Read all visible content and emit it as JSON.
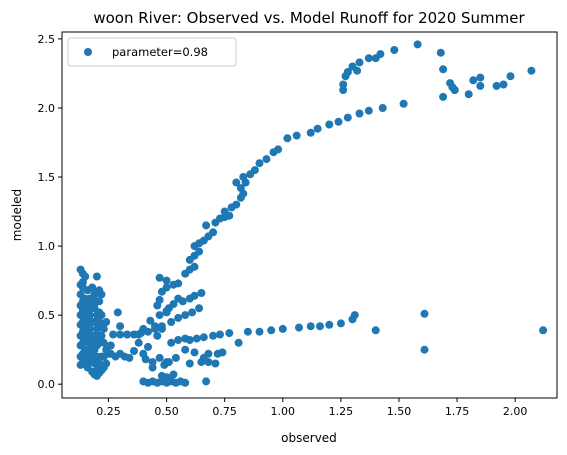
{
  "chart_data": {
    "type": "scatter",
    "title": "woon River: Observed vs. Model Runoff for 2020 Summer",
    "xlabel": "observed",
    "ylabel": "modeled",
    "xlim": [
      0.05,
      2.18
    ],
    "ylim": [
      -0.1,
      2.55
    ],
    "x_ticks": [
      0.25,
      0.5,
      0.75,
      1.0,
      1.25,
      1.5,
      1.75,
      2.0
    ],
    "x_tick_labels": [
      "0.25",
      "0.50",
      "0.75",
      "1.00",
      "1.25",
      "1.50",
      "1.75",
      "2.00"
    ],
    "y_ticks": [
      0.0,
      0.5,
      1.0,
      1.5,
      2.0,
      2.5
    ],
    "y_tick_labels": [
      "0.0",
      "0.5",
      "1.0",
      "1.5",
      "2.0",
      "2.5"
    ],
    "grid": false,
    "legend_position": "top-left",
    "series": [
      {
        "name": "parameter=0.98",
        "color": "#1f77b4",
        "points": [
          [
            0.13,
            0.83
          ],
          [
            0.14,
            0.8
          ],
          [
            0.15,
            0.78
          ],
          [
            0.13,
            0.72
          ],
          [
            0.14,
            0.7
          ],
          [
            0.16,
            0.68
          ],
          [
            0.13,
            0.65
          ],
          [
            0.15,
            0.62
          ],
          [
            0.14,
            0.6
          ],
          [
            0.13,
            0.57
          ],
          [
            0.16,
            0.55
          ],
          [
            0.14,
            0.53
          ],
          [
            0.13,
            0.5
          ],
          [
            0.15,
            0.48
          ],
          [
            0.14,
            0.45
          ],
          [
            0.13,
            0.43
          ],
          [
            0.15,
            0.4
          ],
          [
            0.14,
            0.38
          ],
          [
            0.13,
            0.35
          ],
          [
            0.15,
            0.33
          ],
          [
            0.14,
            0.3
          ],
          [
            0.13,
            0.28
          ],
          [
            0.15,
            0.25
          ],
          [
            0.14,
            0.22
          ],
          [
            0.13,
            0.2
          ],
          [
            0.15,
            0.18
          ],
          [
            0.14,
            0.16
          ],
          [
            0.13,
            0.14
          ],
          [
            0.16,
            0.15
          ],
          [
            0.17,
            0.2
          ],
          [
            0.18,
            0.25
          ],
          [
            0.17,
            0.3
          ],
          [
            0.18,
            0.35
          ],
          [
            0.17,
            0.4
          ],
          [
            0.18,
            0.45
          ],
          [
            0.17,
            0.5
          ],
          [
            0.18,
            0.55
          ],
          [
            0.17,
            0.6
          ],
          [
            0.19,
            0.65
          ],
          [
            0.18,
            0.7
          ],
          [
            0.17,
            0.62
          ],
          [
            0.19,
            0.55
          ],
          [
            0.2,
            0.5
          ],
          [
            0.19,
            0.45
          ],
          [
            0.2,
            0.4
          ],
          [
            0.19,
            0.35
          ],
          [
            0.2,
            0.3
          ],
          [
            0.19,
            0.25
          ],
          [
            0.2,
            0.2
          ],
          [
            0.19,
            0.15
          ],
          [
            0.2,
            0.1
          ],
          [
            0.19,
            0.07
          ],
          [
            0.21,
            0.08
          ],
          [
            0.22,
            0.1
          ],
          [
            0.21,
            0.15
          ],
          [
            0.22,
            0.2
          ],
          [
            0.21,
            0.3
          ],
          [
            0.22,
            0.35
          ],
          [
            0.21,
            0.45
          ],
          [
            0.22,
            0.5
          ],
          [
            0.21,
            0.6
          ],
          [
            0.22,
            0.65
          ],
          [
            0.23,
            0.12
          ],
          [
            0.24,
            0.15
          ],
          [
            0.23,
            0.2
          ],
          [
            0.24,
            0.25
          ],
          [
            0.23,
            0.3
          ],
          [
            0.25,
            0.22
          ],
          [
            0.24,
            0.45
          ],
          [
            0.26,
            0.28
          ],
          [
            0.16,
            0.58
          ],
          [
            0.15,
            0.52
          ],
          [
            0.17,
            0.45
          ],
          [
            0.16,
            0.42
          ],
          [
            0.15,
            0.37
          ],
          [
            0.16,
            0.32
          ],
          [
            0.17,
            0.27
          ],
          [
            0.16,
            0.23
          ],
          [
            0.18,
            0.18
          ],
          [
            0.16,
            0.12
          ],
          [
            0.18,
            0.09
          ],
          [
            0.2,
            0.06
          ],
          [
            0.14,
            0.74
          ],
          [
            0.2,
            0.66
          ],
          [
            0.21,
            0.52
          ],
          [
            0.22,
            0.42
          ],
          [
            0.2,
            0.36
          ],
          [
            0.23,
            0.4
          ],
          [
            0.18,
            0.62
          ],
          [
            0.19,
            0.58
          ],
          [
            0.2,
            0.6
          ],
          [
            0.21,
            0.68
          ],
          [
            0.2,
            0.78
          ],
          [
            0.15,
            0.32
          ],
          [
            0.14,
            0.36
          ],
          [
            0.17,
            0.34
          ],
          [
            0.18,
            0.28
          ],
          [
            0.17,
            0.22
          ],
          [
            0.19,
            0.32
          ],
          [
            0.2,
            0.28
          ],
          [
            0.27,
            0.36
          ],
          [
            0.3,
            0.36
          ],
          [
            0.33,
            0.36
          ],
          [
            0.36,
            0.36
          ],
          [
            0.39,
            0.37
          ],
          [
            0.42,
            0.38
          ],
          [
            0.4,
            0.4
          ],
          [
            0.38,
            0.36
          ],
          [
            0.45,
            0.4
          ],
          [
            0.48,
            0.42
          ],
          [
            0.52,
            0.45
          ],
          [
            0.55,
            0.48
          ],
          [
            0.58,
            0.5
          ],
          [
            0.61,
            0.52
          ],
          [
            0.64,
            0.55
          ],
          [
            0.5,
            0.52
          ],
          [
            0.47,
            0.5
          ],
          [
            0.43,
            0.46
          ],
          [
            0.45,
            0.42
          ],
          [
            0.51,
            0.55
          ],
          [
            0.53,
            0.58
          ],
          [
            0.57,
            0.6
          ],
          [
            0.6,
            0.62
          ],
          [
            0.62,
            0.64
          ],
          [
            0.65,
            0.66
          ],
          [
            0.55,
            0.62
          ],
          [
            0.46,
            0.57
          ],
          [
            0.5,
            0.53
          ],
          [
            0.29,
            0.52
          ],
          [
            0.3,
            0.42
          ],
          [
            0.26,
            0.22
          ],
          [
            0.28,
            0.2
          ],
          [
            0.3,
            0.22
          ],
          [
            0.32,
            0.2
          ],
          [
            0.34,
            0.19
          ],
          [
            0.36,
            0.24
          ],
          [
            0.4,
            0.22
          ],
          [
            0.38,
            0.3
          ],
          [
            0.42,
            0.27
          ],
          [
            0.41,
            0.18
          ],
          [
            0.44,
            0.16
          ],
          [
            0.5,
            0.16
          ],
          [
            0.47,
            0.19
          ],
          [
            0.52,
            0.3
          ],
          [
            0.55,
            0.32
          ],
          [
            0.58,
            0.33
          ],
          [
            0.6,
            0.32
          ],
          [
            0.63,
            0.33
          ],
          [
            0.66,
            0.34
          ],
          [
            0.7,
            0.35
          ],
          [
            0.73,
            0.36
          ],
          [
            0.77,
            0.37
          ],
          [
            0.81,
            0.3
          ],
          [
            0.85,
            0.38
          ],
          [
            0.9,
            0.38
          ],
          [
            0.95,
            0.39
          ],
          [
            1.0,
            0.4
          ],
          [
            1.07,
            0.41
          ],
          [
            1.12,
            0.42
          ],
          [
            1.16,
            0.42
          ],
          [
            1.2,
            0.43
          ],
          [
            1.25,
            0.44
          ],
          [
            1.3,
            0.47
          ],
          [
            1.31,
            0.5
          ],
          [
            1.4,
            0.39
          ],
          [
            1.61,
            0.51
          ],
          [
            1.61,
            0.25
          ],
          [
            2.12,
            0.39
          ],
          [
            0.58,
            0.25
          ],
          [
            0.62,
            0.23
          ],
          [
            0.54,
            0.19
          ],
          [
            0.49,
            0.14
          ],
          [
            0.44,
            0.12
          ],
          [
            0.6,
            0.15
          ],
          [
            0.65,
            0.16
          ],
          [
            0.68,
            0.16
          ],
          [
            0.71,
            0.15
          ],
          [
            0.66,
            0.19
          ],
          [
            0.68,
            0.22
          ],
          [
            0.72,
            0.22
          ],
          [
            0.74,
            0.23
          ],
          [
            0.4,
            0.02
          ],
          [
            0.42,
            0.01
          ],
          [
            0.44,
            0.02
          ],
          [
            0.46,
            0.01
          ],
          [
            0.48,
            0.02
          ],
          [
            0.5,
            0.01
          ],
          [
            0.52,
            0.02
          ],
          [
            0.54,
            0.01
          ],
          [
            0.56,
            0.02
          ],
          [
            0.58,
            0.01
          ],
          [
            0.48,
            0.06
          ],
          [
            0.5,
            0.05
          ],
          [
            0.53,
            0.07
          ],
          [
            0.67,
            0.02
          ],
          [
            0.51,
            0.16
          ],
          [
            0.46,
            0.35
          ],
          [
            0.48,
            0.4
          ],
          [
            0.47,
            0.61
          ],
          [
            0.48,
            0.67
          ],
          [
            0.5,
            0.7
          ],
          [
            0.53,
            0.72
          ],
          [
            0.5,
            0.75
          ],
          [
            0.55,
            0.73
          ],
          [
            0.47,
            0.77
          ],
          [
            0.58,
            0.8
          ],
          [
            0.6,
            0.83
          ],
          [
            0.62,
            0.85
          ],
          [
            0.6,
            0.9
          ],
          [
            0.62,
            0.93
          ],
          [
            0.64,
            0.96
          ],
          [
            0.62,
            1.0
          ],
          [
            0.64,
            1.02
          ],
          [
            0.66,
            1.04
          ],
          [
            0.68,
            1.07
          ],
          [
            0.7,
            1.1
          ],
          [
            0.67,
            1.15
          ],
          [
            0.71,
            1.17
          ],
          [
            0.73,
            1.2
          ],
          [
            0.75,
            1.21
          ],
          [
            0.77,
            1.22
          ],
          [
            0.75,
            1.25
          ],
          [
            0.78,
            1.28
          ],
          [
            0.8,
            1.3
          ],
          [
            0.82,
            1.35
          ],
          [
            0.83,
            1.38
          ],
          [
            0.82,
            1.42
          ],
          [
            0.84,
            1.46
          ],
          [
            0.8,
            1.46
          ],
          [
            0.83,
            1.5
          ],
          [
            0.86,
            1.52
          ],
          [
            0.88,
            1.55
          ],
          [
            0.9,
            1.6
          ],
          [
            0.93,
            1.63
          ],
          [
            0.96,
            1.68
          ],
          [
            0.98,
            1.7
          ],
          [
            1.02,
            1.78
          ],
          [
            1.06,
            1.8
          ],
          [
            1.12,
            1.82
          ],
          [
            1.15,
            1.85
          ],
          [
            1.2,
            1.88
          ],
          [
            1.24,
            1.9
          ],
          [
            1.28,
            1.93
          ],
          [
            1.33,
            1.96
          ],
          [
            1.37,
            1.98
          ],
          [
            1.43,
            2.0
          ],
          [
            1.52,
            2.03
          ],
          [
            1.26,
            2.13
          ],
          [
            1.26,
            2.17
          ],
          [
            1.27,
            2.23
          ],
          [
            1.28,
            2.26
          ],
          [
            1.3,
            2.3
          ],
          [
            1.33,
            2.33
          ],
          [
            1.37,
            2.36
          ],
          [
            1.4,
            2.36
          ],
          [
            1.42,
            2.39
          ],
          [
            1.48,
            2.42
          ],
          [
            1.58,
            2.46
          ],
          [
            1.28,
            2.26
          ],
          [
            1.32,
            2.27
          ],
          [
            1.68,
            2.4
          ],
          [
            1.69,
            2.28
          ],
          [
            1.72,
            2.18
          ],
          [
            1.73,
            2.15
          ],
          [
            1.74,
            2.13
          ],
          [
            1.8,
            2.1
          ],
          [
            1.82,
            2.2
          ],
          [
            1.85,
            2.16
          ],
          [
            1.92,
            2.16
          ],
          [
            1.95,
            2.17
          ],
          [
            1.98,
            2.23
          ],
          [
            2.07,
            2.27
          ],
          [
            1.69,
            2.08
          ],
          [
            1.85,
            2.22
          ],
          [
            1.74,
            2.13
          ]
        ]
      }
    ]
  }
}
